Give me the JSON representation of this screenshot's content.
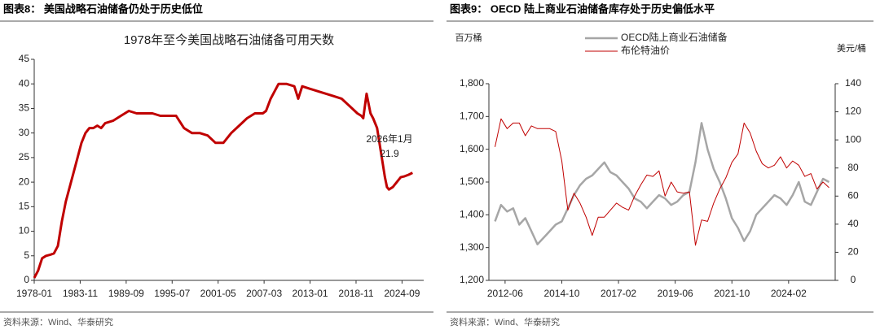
{
  "chart_data": [
    {
      "type": "line",
      "header": "图表8：  美国战略石油储备仍处于历史低位",
      "title": "1978年至今美国战略石油储备可用天数",
      "source": "资料来源：Wind、华泰研究",
      "x": [
        "1978-01",
        "1978-07",
        "1979-01",
        "1979-07",
        "1980-01",
        "1980-07",
        "1981-01",
        "1981-07",
        "1982-01",
        "1982-07",
        "1983-01",
        "1983-07",
        "1984-01",
        "1984-07",
        "1985-01",
        "1985-07",
        "1986-01",
        "1986-07",
        "1987-01",
        "1988-01",
        "1989-01",
        "1990-01",
        "1991-01",
        "1992-01",
        "1993-01",
        "1994-01",
        "1995-01",
        "1996-01",
        "1997-01",
        "1998-01",
        "1999-01",
        "2000-01",
        "2001-01",
        "2002-01",
        "2003-01",
        "2004-01",
        "2005-01",
        "2006-01",
        "2007-01",
        "2007-06",
        "2008-01",
        "2009-01",
        "2010-01",
        "2011-01",
        "2011-07",
        "2012-01",
        "2013-01",
        "2014-01",
        "2015-01",
        "2016-01",
        "2017-01",
        "2018-01",
        "2019-01",
        "2019-07",
        "2019-10",
        "2020-03",
        "2020-06",
        "2020-09",
        "2021-01",
        "2021-07",
        "2022-01",
        "2022-07",
        "2022-10",
        "2023-01",
        "2023-07",
        "2024-01",
        "2024-07",
        "2025-01",
        "2025-07",
        "2026-01"
      ],
      "series": [
        {
          "name": "可用天数",
          "color": "#c00000",
          "values": [
            0.5,
            2,
            4.5,
            5,
            5.2,
            5.5,
            7,
            12,
            16,
            19,
            22,
            25,
            28,
            30,
            31,
            31,
            31.5,
            31,
            32,
            32.5,
            33.5,
            34.5,
            34,
            34,
            34,
            33.5,
            33.5,
            33.5,
            31,
            30,
            30,
            29.5,
            28,
            28,
            30,
            31.5,
            33,
            34,
            34,
            34.5,
            37,
            40,
            40,
            39.5,
            37,
            39.5,
            39,
            38.5,
            38,
            37.5,
            37,
            35.5,
            34,
            33.5,
            33,
            38,
            36,
            34,
            33,
            31,
            26,
            21,
            19,
            18.5,
            19,
            20,
            21,
            21.2,
            21.5,
            21.9
          ]
        }
      ],
      "xlim": [
        "1978-01",
        "2027-06"
      ],
      "xticks": [
        "1978-01",
        "1983-11",
        "1989-09",
        "1995-07",
        "2001-05",
        "2007-03",
        "2013-01",
        "2018-11",
        "2024-09"
      ],
      "ylim": [
        0,
        45
      ],
      "yticks": [
        0,
        5,
        10,
        15,
        20,
        25,
        30,
        35,
        40,
        45
      ],
      "annotations": [
        "2026年1月",
        "21.9"
      ]
    },
    {
      "type": "line",
      "header": "图表9：  OECD 陆上商业石油储备库存处于历史偏低水平",
      "source": "资料来源：Wind、华泰研究",
      "y_label": "百万桶",
      "y2_label": "美元/桶",
      "x": [
        "2012-01",
        "2012-04",
        "2012-07",
        "2012-10",
        "2013-01",
        "2013-04",
        "2013-07",
        "2013-10",
        "2014-01",
        "2014-04",
        "2014-07",
        "2014-10",
        "2015-01",
        "2015-04",
        "2015-07",
        "2015-10",
        "2016-01",
        "2016-04",
        "2016-07",
        "2016-10",
        "2017-01",
        "2017-04",
        "2017-07",
        "2017-10",
        "2018-01",
        "2018-04",
        "2018-07",
        "2018-10",
        "2019-01",
        "2019-04",
        "2019-07",
        "2019-10",
        "2020-01",
        "2020-04",
        "2020-07",
        "2020-10",
        "2021-01",
        "2021-04",
        "2021-07",
        "2021-10",
        "2022-01",
        "2022-04",
        "2022-07",
        "2022-10",
        "2023-01",
        "2023-04",
        "2023-07",
        "2023-10",
        "2024-01",
        "2024-04",
        "2024-07",
        "2024-10",
        "2025-01",
        "2025-04",
        "2025-07",
        "2025-10"
      ],
      "series": [
        {
          "name": "OECD陆上商业石油储备",
          "color": "#a6a6a6",
          "values": [
            1380,
            1430,
            1410,
            1420,
            1370,
            1390,
            1350,
            1310,
            1330,
            1350,
            1370,
            1380,
            1420,
            1460,
            1490,
            1510,
            1520,
            1540,
            1560,
            1530,
            1520,
            1500,
            1480,
            1450,
            1440,
            1420,
            1440,
            1460,
            1450,
            1430,
            1440,
            1460,
            1470,
            1560,
            1680,
            1600,
            1540,
            1500,
            1450,
            1390,
            1360,
            1320,
            1350,
            1400,
            1420,
            1440,
            1460,
            1450,
            1430,
            1460,
            1500,
            1440,
            1430,
            1470,
            1510,
            1500
          ]
        },
        {
          "name": "布伦特油价",
          "color": "#c00000",
          "axis": "y2",
          "values": [
            95,
            115,
            108,
            112,
            112,
            103,
            110,
            108,
            108,
            108,
            106,
            85,
            50,
            62,
            55,
            45,
            32,
            45,
            45,
            50,
            55,
            52,
            50,
            60,
            68,
            75,
            74,
            78,
            60,
            70,
            63,
            62,
            63,
            25,
            43,
            42,
            55,
            65,
            73,
            84,
            90,
            112,
            105,
            92,
            83,
            80,
            82,
            88,
            80,
            85,
            82,
            74,
            76,
            65,
            70,
            66
          ]
        }
      ],
      "xlim": [
        "2011-10",
        "2026-01"
      ],
      "xticks": [
        "2012-06",
        "2014-10",
        "2017-02",
        "2019-06",
        "2021-10",
        "2024-02"
      ],
      "ylim": [
        1200,
        1800
      ],
      "yticks": [
        {
          "value": 1200,
          "label": "1,200"
        },
        {
          "value": 1300,
          "label": "1,300"
        },
        {
          "value": 1400,
          "label": "1,400"
        },
        {
          "value": 1500,
          "label": "1,500"
        },
        {
          "value": 1600,
          "label": "1,600"
        },
        {
          "value": 1700,
          "label": "1,700"
        },
        {
          "value": 1800,
          "label": "1,800"
        }
      ],
      "y2lim": [
        0,
        140
      ],
      "y2ticks": [
        0,
        20,
        40,
        60,
        80,
        100,
        120,
        140
      ],
      "legend": "top"
    }
  ]
}
